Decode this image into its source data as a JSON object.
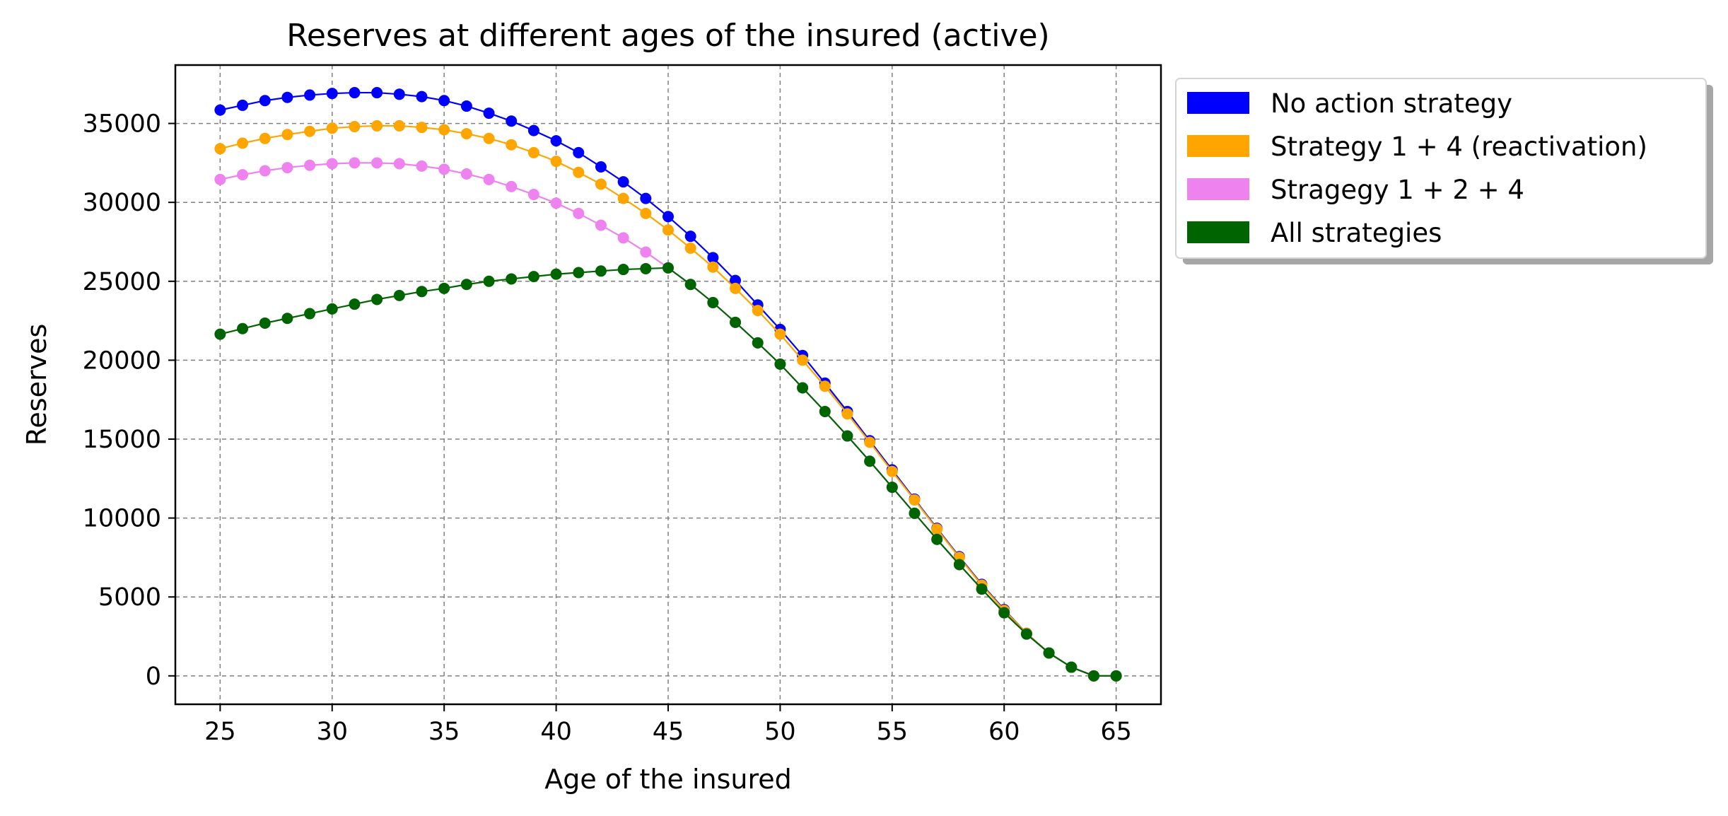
{
  "chart_data": {
    "type": "line",
    "title": "Reserves at different ages of the insured (active)",
    "xlabel": "Age of the insured",
    "ylabel": "Reserves",
    "xlim": [
      23,
      67
    ],
    "ylim": [
      -1800,
      38700
    ],
    "xticks": [
      25,
      30,
      35,
      40,
      45,
      50,
      55,
      60,
      65
    ],
    "yticks": [
      0,
      5000,
      10000,
      15000,
      20000,
      25000,
      30000,
      35000
    ],
    "grid": true,
    "legend_position": "outside-upper-right",
    "x": [
      25,
      26,
      27,
      28,
      29,
      30,
      31,
      32,
      33,
      34,
      35,
      36,
      37,
      38,
      39,
      40,
      41,
      42,
      43,
      44,
      45,
      46,
      47,
      48,
      49,
      50,
      51,
      52,
      53,
      54,
      55,
      56,
      57,
      58,
      59,
      60,
      61,
      62,
      63,
      64,
      65
    ],
    "series": [
      {
        "name": "No action strategy",
        "color": "#0000ff",
        "values": [
          35850,
          36150,
          36450,
          36650,
          36800,
          36900,
          36950,
          36950,
          36850,
          36700,
          36450,
          36100,
          35650,
          35150,
          34550,
          33900,
          33150,
          32250,
          31300,
          30250,
          29100,
          27850,
          26500,
          25050,
          23500,
          21950,
          20300,
          18550,
          16750,
          14900,
          13050,
          11200,
          9350,
          7550,
          5800,
          4200,
          2700,
          1450,
          550,
          0,
          0
        ]
      },
      {
        "name": "Strategy 1 + 4 (reactivation)",
        "color": "#ffa500",
        "values": [
          33400,
          33750,
          34050,
          34300,
          34500,
          34700,
          34800,
          34850,
          34850,
          34750,
          34600,
          34350,
          34050,
          33650,
          33150,
          32600,
          31900,
          31150,
          30250,
          29300,
          28250,
          27100,
          25900,
          24550,
          23150,
          21650,
          20000,
          18350,
          16600,
          14800,
          12950,
          11150,
          9300,
          7500,
          5750,
          4150,
          2700,
          1450,
          550,
          0,
          0
        ]
      },
      {
        "name": "Stragegy 1 + 2 + 4",
        "color": "#ee82ee",
        "values": [
          31450,
          31750,
          32000,
          32200,
          32350,
          32450,
          32500,
          32500,
          32450,
          32300,
          32100,
          31800,
          31450,
          31000,
          30500,
          29950,
          29300,
          28550,
          27750,
          26850,
          25850,
          24800,
          23650,
          22400,
          21100,
          19750,
          18250,
          16750,
          15200,
          13600,
          11950,
          10300,
          8650,
          7050,
          5500,
          4000,
          2650,
          1450,
          550,
          0,
          0
        ]
      },
      {
        "name": "All strategies",
        "color": "#006400",
        "values": [
          21650,
          22000,
          22350,
          22650,
          22950,
          23250,
          23550,
          23850,
          24100,
          24350,
          24550,
          24800,
          25000,
          25150,
          25300,
          25450,
          25550,
          25650,
          25750,
          25800,
          25850,
          24800,
          23650,
          22400,
          21100,
          19750,
          18250,
          16750,
          15200,
          13600,
          11950,
          10300,
          8650,
          7050,
          5500,
          4000,
          2650,
          1450,
          550,
          0,
          0
        ]
      }
    ]
  }
}
